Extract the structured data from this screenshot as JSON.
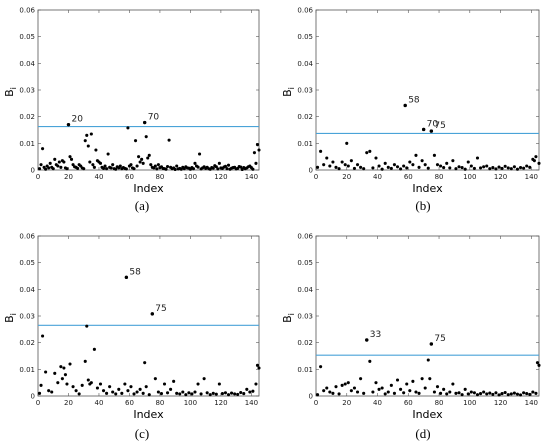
{
  "chart_data": [
    {
      "type": "scatter",
      "panel_label": "(a)",
      "xlabel": "Index",
      "ylabel": "B",
      "ylabel_sub": "i",
      "xlim": [
        0,
        145
      ],
      "ylim": [
        0,
        0.06
      ],
      "xticks": [
        "0",
        "20",
        "40",
        "60",
        "80",
        "100",
        "120",
        "140"
      ],
      "yticks": [
        "0",
        "0.01",
        "0.02",
        "0.03",
        "0.04",
        "0.05",
        "0.06"
      ],
      "threshold": 0.0163,
      "threshold_color": "#4aa3d8",
      "annotations": [
        {
          "label": "20",
          "x": 20,
          "y": 0.017
        },
        {
          "label": "70",
          "x": 70,
          "y": 0.0178
        }
      ],
      "x": [
        1,
        2,
        3,
        4,
        5,
        6,
        7,
        8,
        9,
        10,
        11,
        12,
        13,
        14,
        15,
        16,
        17,
        18,
        19,
        20,
        21,
        22,
        23,
        24,
        25,
        26,
        27,
        28,
        29,
        30,
        31,
        32,
        33,
        34,
        35,
        36,
        37,
        38,
        39,
        40,
        41,
        42,
        43,
        44,
        45,
        46,
        47,
        48,
        49,
        50,
        51,
        52,
        53,
        54,
        55,
        56,
        57,
        58,
        59,
        60,
        61,
        62,
        63,
        64,
        65,
        66,
        67,
        68,
        69,
        70,
        71,
        72,
        73,
        74,
        75,
        76,
        77,
        78,
        79,
        80,
        81,
        82,
        83,
        84,
        85,
        86,
        87,
        88,
        89,
        90,
        91,
        92,
        93,
        94,
        95,
        96,
        97,
        98,
        99,
        100,
        101,
        102,
        103,
        104,
        105,
        106,
        107,
        108,
        109,
        110,
        111,
        112,
        113,
        114,
        115,
        116,
        117,
        118,
        119,
        120,
        121,
        122,
        123,
        124,
        125,
        126,
        127,
        128,
        129,
        130,
        131,
        132,
        133,
        134,
        135,
        136,
        137,
        138,
        139,
        140,
        141,
        142,
        143,
        144,
        145
      ],
      "y": [
        0.0005,
        0.002,
        0.008,
        0.001,
        0.0003,
        0.0015,
        0.0008,
        0.0025,
        0.001,
        0.0005,
        0.004,
        0.002,
        0.0015,
        0.003,
        0.001,
        0.0035,
        0.003,
        0.0008,
        0.0005,
        0.017,
        0.005,
        0.004,
        0.002,
        0.0012,
        0.001,
        0.0006,
        0.002,
        0.0015,
        0.0008,
        0.0005,
        0.011,
        0.013,
        0.009,
        0.003,
        0.0135,
        0.002,
        0.001,
        0.0075,
        0.0035,
        0.003,
        0.0025,
        0.001,
        0.0006,
        0.0015,
        0.0005,
        0.006,
        0.001,
        0.0008,
        0.002,
        0.0005,
        0.0003,
        0.0012,
        0.0008,
        0.0015,
        0.0005,
        0.0009,
        0.0006,
        0.0004,
        0.0158,
        0.0015,
        0.002,
        0.0008,
        0.0005,
        0.011,
        0.0015,
        0.005,
        0.003,
        0.004,
        0.0025,
        0.0178,
        0.0125,
        0.0045,
        0.0055,
        0.002,
        0.001,
        0.0008,
        0.0015,
        0.0004,
        0.002,
        0.0009,
        0.0012,
        0.0006,
        0.0005,
        0.0003,
        0.0013,
        0.0112,
        0.001,
        0.0005,
        0.0008,
        0.0002,
        0.0015,
        0.0004,
        0.0006,
        0.0003,
        0.001,
        0.0005,
        0.0012,
        0.0008,
        0.0007,
        0.0003,
        0.0009,
        0.0005,
        0.0025,
        0.0015,
        0.0011,
        0.006,
        0.0004,
        0.0008,
        0.0012,
        0.0006,
        0.001,
        0.0005,
        0.0003,
        0.0009,
        0.0007,
        0.0016,
        0.0012,
        0.0004,
        0.0025,
        0.0008,
        0.0006,
        0.0011,
        0.0014,
        0.0005,
        0.0018,
        0.0003,
        0.0007,
        0.0009,
        0.001,
        0.0004,
        0.0006,
        0.0013,
        0.0011,
        0.0002,
        0.0009,
        0.0005,
        0.0008,
        0.0012,
        0.0015,
        0.0009,
        0.0003,
        0.0065,
        0.0025,
        0.0095,
        0.0075
      ]
    },
    {
      "type": "scatter",
      "panel_label": "(b)",
      "xlabel": "Index",
      "ylabel": "B",
      "ylabel_sub": "i",
      "xlim": [
        0,
        145
      ],
      "ylim": [
        0,
        0.06
      ],
      "xticks": [
        "0",
        "20",
        "40",
        "60",
        "80",
        "100",
        "120",
        "140"
      ],
      "yticks": [
        "0",
        "0.01",
        "0.02",
        "0.03",
        "0.04",
        "0.05",
        "0.06"
      ],
      "threshold": 0.0137,
      "threshold_color": "#4aa3d8",
      "annotations": [
        {
          "label": "58",
          "x": 58,
          "y": 0.0242
        },
        {
          "label": "70",
          "x": 70,
          "y": 0.0152
        },
        {
          "label": "75",
          "x": 75,
          "y": 0.0146
        }
      ],
      "x": [
        1,
        3,
        5,
        7,
        9,
        11,
        13,
        15,
        17,
        19,
        20,
        21,
        23,
        25,
        27,
        29,
        31,
        33,
        35,
        37,
        39,
        41,
        43,
        45,
        47,
        49,
        51,
        53,
        55,
        57,
        58,
        59,
        61,
        63,
        65,
        67,
        69,
        70,
        71,
        73,
        75,
        77,
        79,
        81,
        83,
        85,
        87,
        89,
        91,
        93,
        95,
        97,
        99,
        101,
        103,
        105,
        107,
        109,
        111,
        113,
        115,
        117,
        119,
        121,
        123,
        125,
        127,
        129,
        131,
        133,
        135,
        137,
        139,
        141,
        142,
        143,
        145
      ],
      "y": [
        0.001,
        0.007,
        0.002,
        0.0045,
        0.0015,
        0.003,
        0.001,
        0.0005,
        0.003,
        0.002,
        0.01,
        0.0015,
        0.0035,
        0.0006,
        0.002,
        0.001,
        0.0005,
        0.0065,
        0.007,
        0.0008,
        0.0045,
        0.0015,
        0.0003,
        0.0025,
        0.001,
        0.0006,
        0.002,
        0.0012,
        0.0004,
        0.0015,
        0.0242,
        0.0008,
        0.003,
        0.002,
        0.0055,
        0.001,
        0.0035,
        0.0152,
        0.002,
        0.0007,
        0.0146,
        0.0055,
        0.002,
        0.0015,
        0.0009,
        0.0025,
        0.0008,
        0.0035,
        0.0005,
        0.0012,
        0.0009,
        0.0003,
        0.003,
        0.0015,
        0.0006,
        0.0045,
        0.0008,
        0.0012,
        0.0015,
        0.0005,
        0.0009,
        0.0004,
        0.0011,
        0.0006,
        0.0014,
        0.0008,
        0.0005,
        0.0012,
        0.0003,
        0.0009,
        0.0007,
        0.0015,
        0.001,
        0.004,
        0.0035,
        0.005,
        0.0025
      ]
    },
    {
      "type": "scatter",
      "panel_label": "(c)",
      "xlabel": "Index",
      "ylabel": "B",
      "ylabel_sub": "i",
      "xlim": [
        0,
        145
      ],
      "ylim": [
        0,
        0.06
      ],
      "xticks": [
        "0",
        "20",
        "40",
        "60",
        "80",
        "100",
        "120",
        "140"
      ],
      "yticks": [
        "0",
        "0.01",
        "0.02",
        "0.03",
        "0.04",
        "0.05",
        "0.06"
      ],
      "threshold": 0.0265,
      "threshold_color": "#4aa3d8",
      "annotations": [
        {
          "label": "58",
          "x": 58,
          "y": 0.0445
        },
        {
          "label": "75",
          "x": 75,
          "y": 0.0308
        }
      ],
      "x": [
        1,
        2,
        3,
        5,
        7,
        9,
        11,
        13,
        15,
        16,
        17,
        18,
        19,
        21,
        23,
        25,
        27,
        29,
        31,
        32,
        33,
        34,
        35,
        37,
        39,
        41,
        43,
        45,
        47,
        49,
        51,
        53,
        55,
        57,
        58,
        59,
        61,
        63,
        65,
        67,
        69,
        70,
        71,
        73,
        75,
        77,
        79,
        81,
        83,
        85,
        87,
        89,
        91,
        93,
        95,
        97,
        99,
        101,
        103,
        105,
        107,
        109,
        111,
        113,
        115,
        117,
        119,
        121,
        123,
        125,
        127,
        129,
        131,
        133,
        135,
        137,
        139,
        141,
        143,
        144,
        145
      ],
      "y": [
        0.001,
        0.004,
        0.0225,
        0.009,
        0.002,
        0.0015,
        0.0085,
        0.005,
        0.011,
        0.0065,
        0.0105,
        0.008,
        0.0045,
        0.012,
        0.0035,
        0.002,
        0.0008,
        0.004,
        0.013,
        0.0262,
        0.006,
        0.0045,
        0.005,
        0.0175,
        0.003,
        0.0045,
        0.002,
        0.001,
        0.0035,
        0.0015,
        0.0008,
        0.0025,
        0.001,
        0.0045,
        0.0445,
        0.002,
        0.0035,
        0.0008,
        0.0015,
        0.0025,
        0.001,
        0.0125,
        0.0035,
        0.0005,
        0.0308,
        0.0065,
        0.0015,
        0.0009,
        0.0045,
        0.0012,
        0.0025,
        0.0055,
        0.001,
        0.0008,
        0.0015,
        0.0005,
        0.0012,
        0.0008,
        0.0015,
        0.0045,
        0.0008,
        0.0065,
        0.0012,
        0.0005,
        0.001,
        0.0007,
        0.0045,
        0.0009,
        0.0012,
        0.0005,
        0.0011,
        0.0008,
        0.0006,
        0.0013,
        0.0009,
        0.0025,
        0.0015,
        0.0018,
        0.0045,
        0.0115,
        0.0105
      ]
    },
    {
      "type": "scatter",
      "panel_label": "(d)",
      "xlabel": "Index",
      "ylabel": "B",
      "ylabel_sub": "i",
      "xlim": [
        0,
        145
      ],
      "ylim": [
        0,
        0.06
      ],
      "xticks": [
        "0",
        "20",
        "40",
        "60",
        "80",
        "100",
        "120",
        "140"
      ],
      "yticks": [
        "0",
        "0.01",
        "0.02",
        "0.03",
        "0.04",
        "0.05",
        "0.06"
      ],
      "threshold": 0.0153,
      "threshold_color": "#4aa3d8",
      "annotations": [
        {
          "label": "33",
          "x": 33,
          "y": 0.021
        },
        {
          "label": "75",
          "x": 75,
          "y": 0.0195
        }
      ],
      "x": [
        1,
        3,
        5,
        7,
        9,
        11,
        13,
        15,
        17,
        19,
        21,
        23,
        25,
        27,
        29,
        31,
        33,
        35,
        37,
        39,
        41,
        43,
        45,
        47,
        49,
        51,
        53,
        55,
        57,
        59,
        61,
        63,
        65,
        67,
        69,
        71,
        73,
        74,
        75,
        77,
        79,
        81,
        83,
        85,
        87,
        89,
        91,
        93,
        95,
        97,
        99,
        101,
        103,
        105,
        107,
        109,
        111,
        113,
        115,
        117,
        119,
        121,
        123,
        125,
        127,
        129,
        131,
        133,
        135,
        137,
        139,
        141,
        143,
        144,
        145
      ],
      "y": [
        0.0005,
        0.011,
        0.002,
        0.003,
        0.0015,
        0.001,
        0.0035,
        0.0008,
        0.004,
        0.0045,
        0.005,
        0.002,
        0.003,
        0.0015,
        0.0065,
        0.001,
        0.021,
        0.013,
        0.0015,
        0.005,
        0.0025,
        0.003,
        0.0008,
        0.0015,
        0.004,
        0.001,
        0.006,
        0.0025,
        0.0012,
        0.0045,
        0.002,
        0.0055,
        0.0015,
        0.001,
        0.0065,
        0.003,
        0.0135,
        0.0065,
        0.0195,
        0.0015,
        0.0035,
        0.001,
        0.0025,
        0.0008,
        0.0015,
        0.0045,
        0.001,
        0.0012,
        0.0005,
        0.0025,
        0.0008,
        0.0015,
        0.0012,
        0.0005,
        0.0009,
        0.0015,
        0.0008,
        0.0011,
        0.0006,
        0.0012,
        0.0004,
        0.0009,
        0.0013,
        0.0005,
        0.0008,
        0.0011,
        0.0007,
        0.0004,
        0.0012,
        0.0009,
        0.0006,
        0.0015,
        0.001,
        0.0125,
        0.0115
      ]
    }
  ]
}
